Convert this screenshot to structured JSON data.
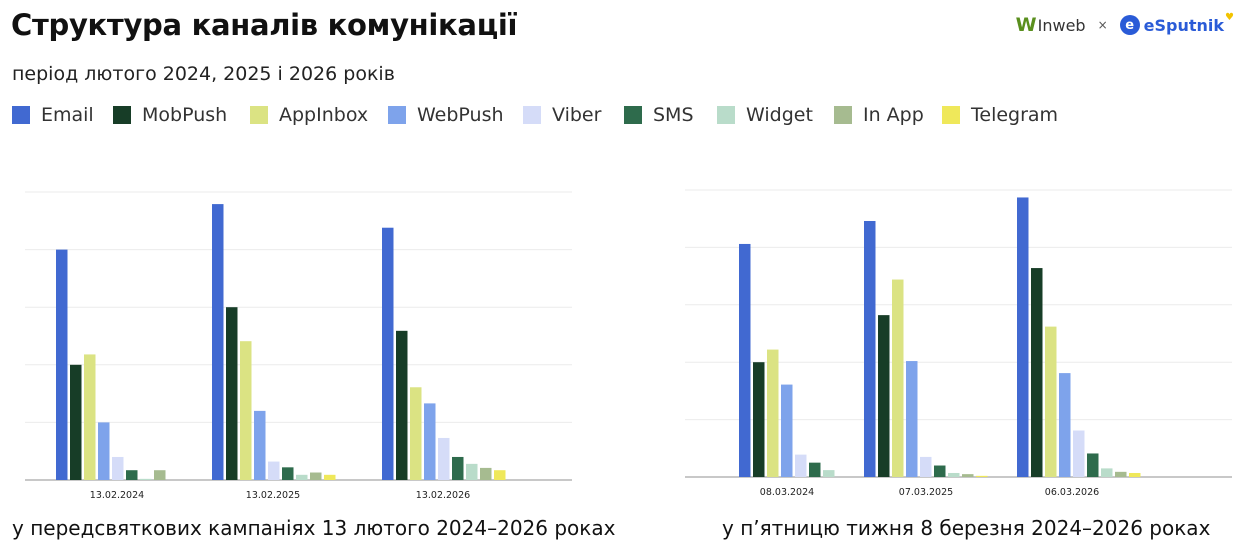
{
  "header": {
    "title": "Структура каналів комунікації",
    "subtitle": "період лютого 2024, 2025 і 2026 років",
    "logos": {
      "inweb": "Inweb",
      "separator": "×",
      "esputnik": "eSputnik"
    }
  },
  "legend": [
    {
      "name": "Email",
      "color": "#4169d1"
    },
    {
      "name": "MobPush",
      "color": "#173d27"
    },
    {
      "name": "AppInbox",
      "color": "#dbe383"
    },
    {
      "name": "WebPush",
      "color": "#7ea3eb"
    },
    {
      "name": "Viber",
      "color": "#d5dcf8"
    },
    {
      "name": "SMS",
      "color": "#2e6b4c"
    },
    {
      "name": "Widget",
      "color": "#b9dcca"
    },
    {
      "name": "In App",
      "color": "#a6bb90"
    },
    {
      "name": "Telegram",
      "color": "#efe85a"
    }
  ],
  "chart_data": [
    {
      "type": "bar",
      "caption": "у передсвяткових кампаніях 13 лютого 2024–2026 роках",
      "categories": [
        "13.02.2024",
        "13.02.2025",
        "13.02.2026"
      ],
      "ylim": [
        0,
        5
      ],
      "grid": true,
      "y_tick_labels": false,
      "legend": "top",
      "series": [
        {
          "name": "Email",
          "values": [
            4.0,
            4.79,
            4.38
          ]
        },
        {
          "name": "MobPush",
          "values": [
            2.0,
            3.0,
            2.59
          ]
        },
        {
          "name": "AppInbox",
          "values": [
            2.18,
            2.41,
            1.61
          ]
        },
        {
          "name": "WebPush",
          "values": [
            1.0,
            1.2,
            1.33
          ]
        },
        {
          "name": "Viber",
          "values": [
            0.4,
            0.32,
            0.73
          ]
        },
        {
          "name": "SMS",
          "values": [
            0.17,
            0.22,
            0.4
          ]
        },
        {
          "name": "Widget",
          "values": [
            0.02,
            0.09,
            0.28
          ]
        },
        {
          "name": "In App",
          "values": [
            0.17,
            0.13,
            0.21
          ]
        },
        {
          "name": "Telegram",
          "values": [
            0,
            0.09,
            0.17
          ]
        }
      ]
    },
    {
      "type": "bar",
      "caption": "у п’ятницю тижня 8 березня 2024–2026 роках",
      "categories": [
        "08.03.2024",
        "07.03.2025",
        "06.03.2026"
      ],
      "ylim": [
        0,
        5
      ],
      "grid": true,
      "y_tick_labels": false,
      "legend": "top",
      "series": [
        {
          "name": "Email",
          "values": [
            4.06,
            4.46,
            4.87
          ]
        },
        {
          "name": "MobPush",
          "values": [
            2.0,
            2.82,
            3.64
          ]
        },
        {
          "name": "AppInbox",
          "values": [
            2.22,
            3.44,
            2.62
          ]
        },
        {
          "name": "WebPush",
          "values": [
            1.61,
            2.02,
            1.81
          ]
        },
        {
          "name": "Viber",
          "values": [
            0.39,
            0.35,
            0.81
          ]
        },
        {
          "name": "SMS",
          "values": [
            0.25,
            0.2,
            0.41
          ]
        },
        {
          "name": "Widget",
          "values": [
            0.12,
            0.07,
            0.15
          ]
        },
        {
          "name": "In App",
          "values": [
            0,
            0.05,
            0.09
          ]
        },
        {
          "name": "Telegram",
          "values": [
            0,
            0.02,
            0.07
          ]
        }
      ]
    }
  ]
}
